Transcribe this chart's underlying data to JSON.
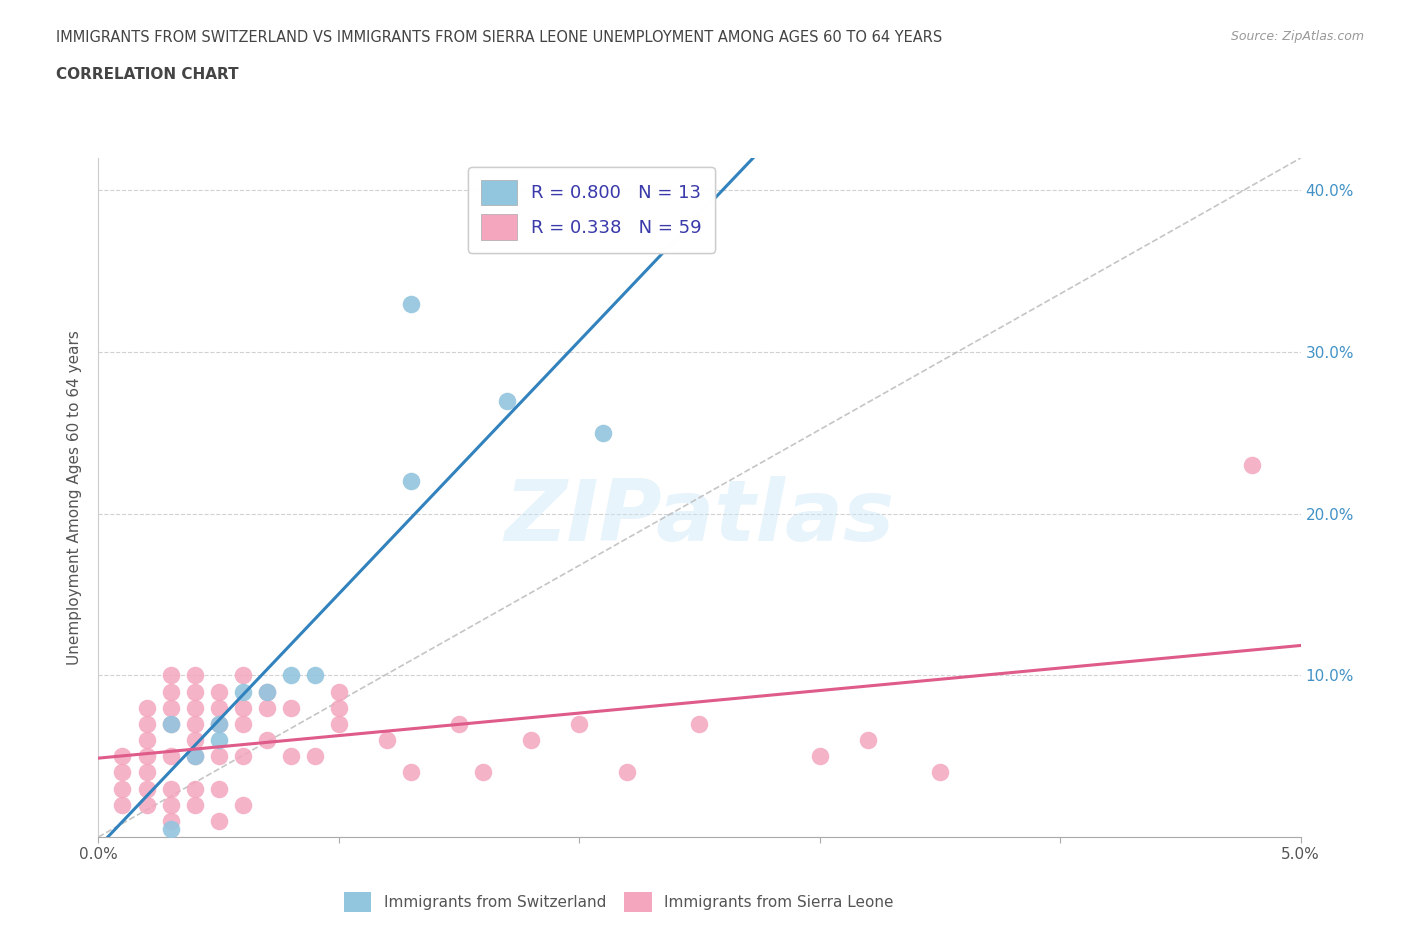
{
  "title_line1": "IMMIGRANTS FROM SWITZERLAND VS IMMIGRANTS FROM SIERRA LEONE UNEMPLOYMENT AMONG AGES 60 TO 64 YEARS",
  "title_line2": "CORRELATION CHART",
  "source_text": "Source: ZipAtlas.com",
  "ylabel": "Unemployment Among Ages 60 to 64 years",
  "xlim": [
    0.0,
    0.05
  ],
  "ylim": [
    0.0,
    0.42
  ],
  "xticks": [
    0.0,
    0.01,
    0.02,
    0.03,
    0.04,
    0.05
  ],
  "yticks": [
    0.0,
    0.1,
    0.2,
    0.3,
    0.4
  ],
  "ytick_labels": [
    "",
    "10.0%",
    "20.0%",
    "30.0%",
    "40.0%"
  ],
  "switzerland_R": 0.8,
  "switzerland_N": 13,
  "sierraleone_R": 0.338,
  "sierraleone_N": 59,
  "color_switzerland": "#92c5de",
  "color_sierraleone": "#f4a6be",
  "color_regression_switzerland": "#3182bd",
  "color_regression_sierraleone": "#de5b8a",
  "color_diagonal": "#bbbbbb",
  "watermark": "ZIPatlas",
  "switzerland_x": [
    0.003,
    0.003,
    0.004,
    0.005,
    0.005,
    0.006,
    0.007,
    0.008,
    0.009,
    0.013,
    0.017,
    0.021,
    0.013
  ],
  "switzerland_y": [
    0.005,
    0.07,
    0.05,
    0.06,
    0.07,
    0.09,
    0.09,
    0.1,
    0.1,
    0.22,
    0.27,
    0.25,
    0.33
  ],
  "sierraleone_x": [
    0.001,
    0.001,
    0.001,
    0.001,
    0.002,
    0.002,
    0.002,
    0.002,
    0.002,
    0.002,
    0.002,
    0.003,
    0.003,
    0.003,
    0.003,
    0.003,
    0.003,
    0.003,
    0.003,
    0.004,
    0.004,
    0.004,
    0.004,
    0.004,
    0.004,
    0.004,
    0.004,
    0.005,
    0.005,
    0.005,
    0.005,
    0.005,
    0.005,
    0.006,
    0.006,
    0.006,
    0.006,
    0.006,
    0.007,
    0.007,
    0.007,
    0.008,
    0.008,
    0.009,
    0.01,
    0.01,
    0.01,
    0.012,
    0.013,
    0.015,
    0.016,
    0.018,
    0.02,
    0.022,
    0.025,
    0.03,
    0.032,
    0.035,
    0.048
  ],
  "sierraleone_y": [
    0.02,
    0.03,
    0.04,
    0.05,
    0.02,
    0.03,
    0.04,
    0.05,
    0.06,
    0.07,
    0.08,
    0.01,
    0.02,
    0.03,
    0.05,
    0.07,
    0.08,
    0.09,
    0.1,
    0.02,
    0.03,
    0.05,
    0.06,
    0.07,
    0.08,
    0.09,
    0.1,
    0.01,
    0.03,
    0.05,
    0.07,
    0.08,
    0.09,
    0.02,
    0.05,
    0.07,
    0.08,
    0.1,
    0.06,
    0.08,
    0.09,
    0.05,
    0.08,
    0.05,
    0.07,
    0.08,
    0.09,
    0.06,
    0.04,
    0.07,
    0.04,
    0.06,
    0.07,
    0.04,
    0.07,
    0.05,
    0.06,
    0.04,
    0.23
  ]
}
